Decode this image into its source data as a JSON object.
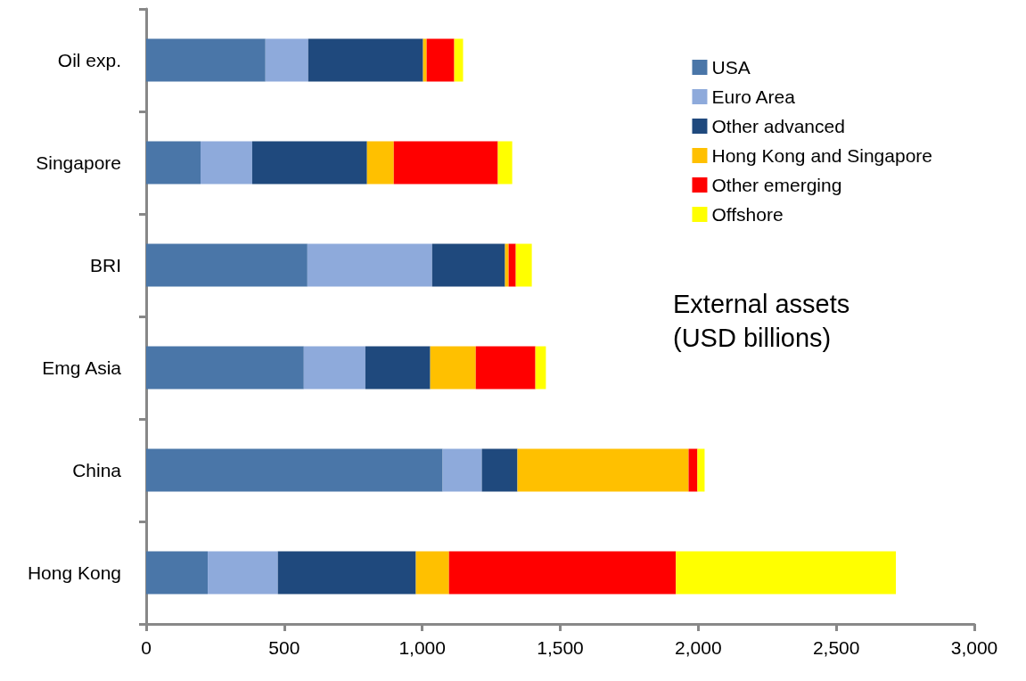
{
  "chart_data": {
    "type": "bar",
    "orientation": "horizontal",
    "stacked": true,
    "categories": [
      "Oil exp.",
      "Singapore",
      "BRI",
      "Emg Asia",
      "China",
      "Hong Kong"
    ],
    "series": [
      {
        "name": "USA",
        "color": "#4a76a8",
        "values": [
          432,
          197,
          584,
          571,
          1074,
          223
        ]
      },
      {
        "name": "Euro Area",
        "color": "#8eaadb",
        "values": [
          155,
          187,
          452,
          223,
          142,
          254
        ]
      },
      {
        "name": "Other advanced",
        "color": "#1f497d",
        "values": [
          416,
          416,
          264,
          235,
          129,
          500
        ]
      },
      {
        "name": "Hong Kong and Singapore",
        "color": "#ffc000",
        "values": [
          13,
          97,
          13,
          165,
          620,
          120
        ]
      },
      {
        "name": "Other emerging",
        "color": "#ff0000",
        "values": [
          100,
          377,
          26,
          216,
          32,
          822
        ]
      },
      {
        "name": "Offshore",
        "color": "#ffff00",
        "values": [
          32,
          52,
          58,
          38,
          26,
          797
        ]
      }
    ],
    "xlim": [
      0,
      3000
    ],
    "xticks": [
      0,
      {
        "value": 500,
        "label": "500"
      },
      {
        "value": 1000,
        "label": "1,000"
      },
      {
        "value": 1500,
        "label": "1,500"
      },
      {
        "value": 2000,
        "label": "2,000"
      },
      {
        "value": 2500,
        "label": "2,500"
      },
      {
        "value": 3000,
        "label": "3,000"
      }
    ],
    "grid": false,
    "legend": "top right",
    "annotations": [
      "External assets\n(USD billions)"
    ]
  }
}
